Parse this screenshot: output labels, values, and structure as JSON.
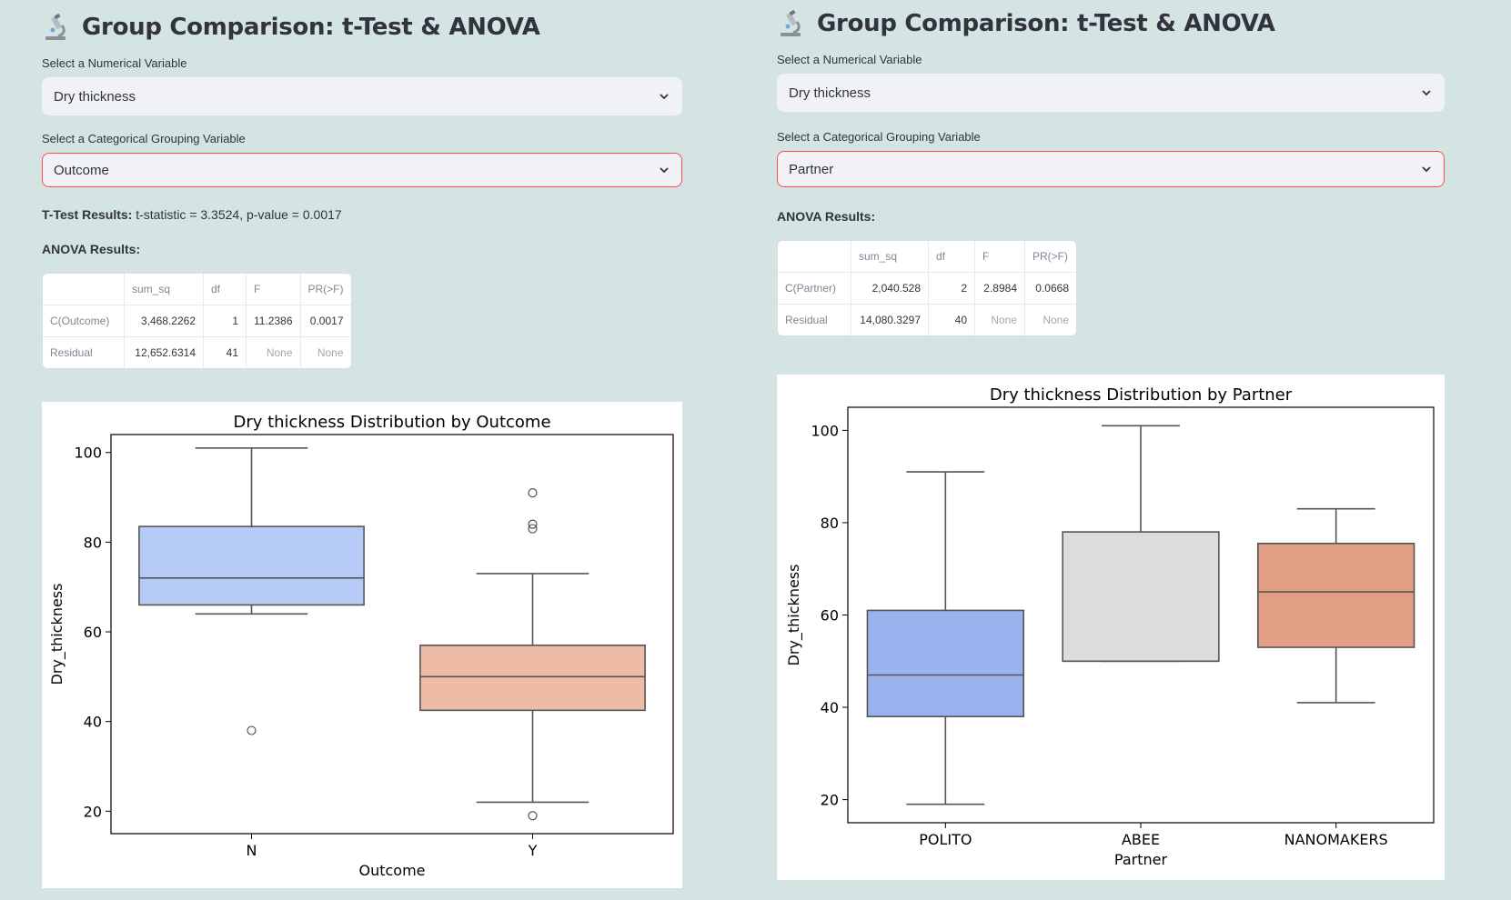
{
  "left": {
    "title": "Group Comparison: t-Test & ANOVA",
    "num_label": "Select a Numerical Variable",
    "num_value": "Dry thickness",
    "cat_label": "Select a Categorical Grouping Variable",
    "cat_value": "Outcome",
    "ttest_label": "T-Test Results:",
    "ttest_text": "t-statistic = 3.3524, p-value = 0.0017",
    "anova_label": "ANOVA Results:",
    "table": {
      "headers": [
        "",
        "sum_sq",
        "df",
        "F",
        "PR(>F)"
      ],
      "rows": [
        [
          "C(Outcome)",
          "3,468.2262",
          "1",
          "11.2386",
          "0.0017"
        ],
        [
          "Residual",
          "12,652.6314",
          "41",
          "None",
          "None"
        ]
      ]
    }
  },
  "right": {
    "title": "Group Comparison: t-Test & ANOVA",
    "num_label": "Select a Numerical Variable",
    "num_value": "Dry thickness",
    "cat_label": "Select a Categorical Grouping Variable",
    "cat_value": "Partner",
    "anova_label": "ANOVA Results:",
    "table": {
      "headers": [
        "",
        "sum_sq",
        "df",
        "F",
        "PR(>F)"
      ],
      "rows": [
        [
          "C(Partner)",
          "2,040.528",
          "2",
          "2.8984",
          "0.0668"
        ],
        [
          "Residual",
          "14,080.3297",
          "40",
          "None",
          "None"
        ]
      ]
    }
  },
  "colors": {
    "accent_border": "#ff4b4b",
    "select_bg": "#f0f2f6",
    "page_bg": "#d3e4e2"
  },
  "icons": {
    "title_icon": "microscope-icon",
    "select_icon": "chevron-down-icon"
  },
  "chart_data": [
    {
      "type": "box",
      "title": "Dry thickness Distribution by Outcome",
      "xlabel": "Outcome",
      "ylabel": "Dry_thickness",
      "ylim": [
        15,
        104
      ],
      "yticks": [
        20,
        40,
        60,
        80,
        100
      ],
      "categories": [
        "N",
        "Y"
      ],
      "boxes": [
        {
          "category": "N",
          "whisker_low": 64,
          "q1": 66,
          "median": 72,
          "q3": 83.5,
          "whisker_high": 101,
          "outliers": [
            38
          ],
          "color": "#b5cbf5"
        },
        {
          "category": "Y",
          "whisker_low": 22,
          "q1": 42.5,
          "median": 50,
          "q3": 57,
          "whisker_high": 73,
          "outliers": [
            19,
            83,
            84,
            91
          ],
          "color": "#edbba6"
        }
      ]
    },
    {
      "type": "box",
      "title": "Dry thickness Distribution by Partner",
      "xlabel": "Partner",
      "ylabel": "Dry_thickness",
      "ylim": [
        15,
        105
      ],
      "yticks": [
        20,
        40,
        60,
        80,
        100
      ],
      "categories": [
        "POLITO",
        "ABEE",
        "NANOMAKERS"
      ],
      "boxes": [
        {
          "category": "POLITO",
          "whisker_low": 19,
          "q1": 38,
          "median": 47,
          "q3": 61,
          "whisker_high": 91,
          "outliers": [],
          "color": "#9ab3ee"
        },
        {
          "category": "ABEE",
          "whisker_low": 50,
          "q1": 50,
          "median": 50,
          "q3": 78,
          "whisker_high": 101,
          "outliers": [],
          "color": "#dcdcdc"
        },
        {
          "category": "NANOMAKERS",
          "whisker_low": 41,
          "q1": 53,
          "median": 65,
          "q3": 75.5,
          "whisker_high": 83,
          "outliers": [],
          "color": "#e39f86"
        }
      ]
    }
  ]
}
